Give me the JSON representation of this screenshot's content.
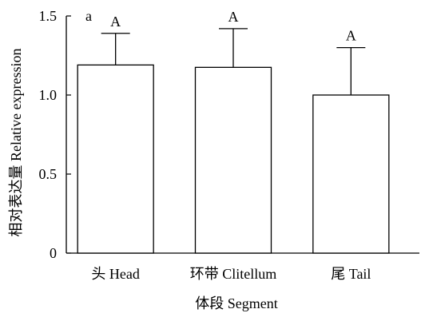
{
  "chart_data": {
    "type": "bar",
    "panel_label": "a",
    "categories": [
      "头 Head",
      "环带 Clitellum",
      "尾 Tail"
    ],
    "values": [
      1.19,
      1.175,
      1.0
    ],
    "error_upper": [
      1.39,
      1.42,
      1.3
    ],
    "significance_letters": [
      "A",
      "A",
      "A"
    ],
    "xlabel": "体段 Segment",
    "ylabel": "相对表达量 Relative expression",
    "ylim": [
      0,
      1.5
    ],
    "yticks": [
      0,
      0.5,
      1.0,
      1.5
    ],
    "ytick_labels": [
      "0",
      "0.5",
      "1.0",
      "1.5"
    ],
    "grid": false,
    "colors": {
      "bar_fill": "#ffffff",
      "stroke": "#000000"
    }
  }
}
